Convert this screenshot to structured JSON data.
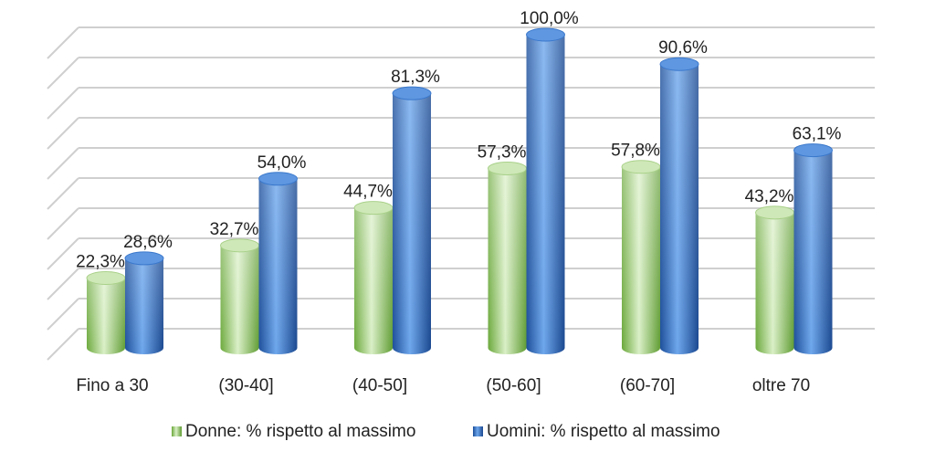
{
  "chart_data": {
    "type": "bar",
    "title": "",
    "xlabel": "",
    "ylabel": "",
    "ylim": [
      0,
      100
    ],
    "categories": [
      "Fino a 30",
      "(30-40]",
      "(40-50]",
      "(50-60]",
      "(60-70]",
      "oltre 70"
    ],
    "series": [
      {
        "name": "Donne: % rispetto al massimo",
        "values": [
          22.3,
          32.7,
          44.7,
          57.3,
          57.8,
          43.2
        ],
        "labels": [
          "22,3%",
          "32,7%",
          "44,7%",
          "57,3%",
          "57,8%",
          "43,2%"
        ],
        "color": "#7fbf4a"
      },
      {
        "name": "Uomini: % rispetto al massimo",
        "values": [
          28.6,
          54.0,
          81.3,
          100.0,
          90.6,
          63.1
        ],
        "labels": [
          "28,6%",
          "54,0%",
          "81,3%",
          "100,0%",
          "90,6%",
          "63,1%"
        ],
        "color": "#2f6fc6"
      }
    ],
    "grid": true,
    "legend_position": "bottom",
    "style": "3d-cylinder"
  }
}
